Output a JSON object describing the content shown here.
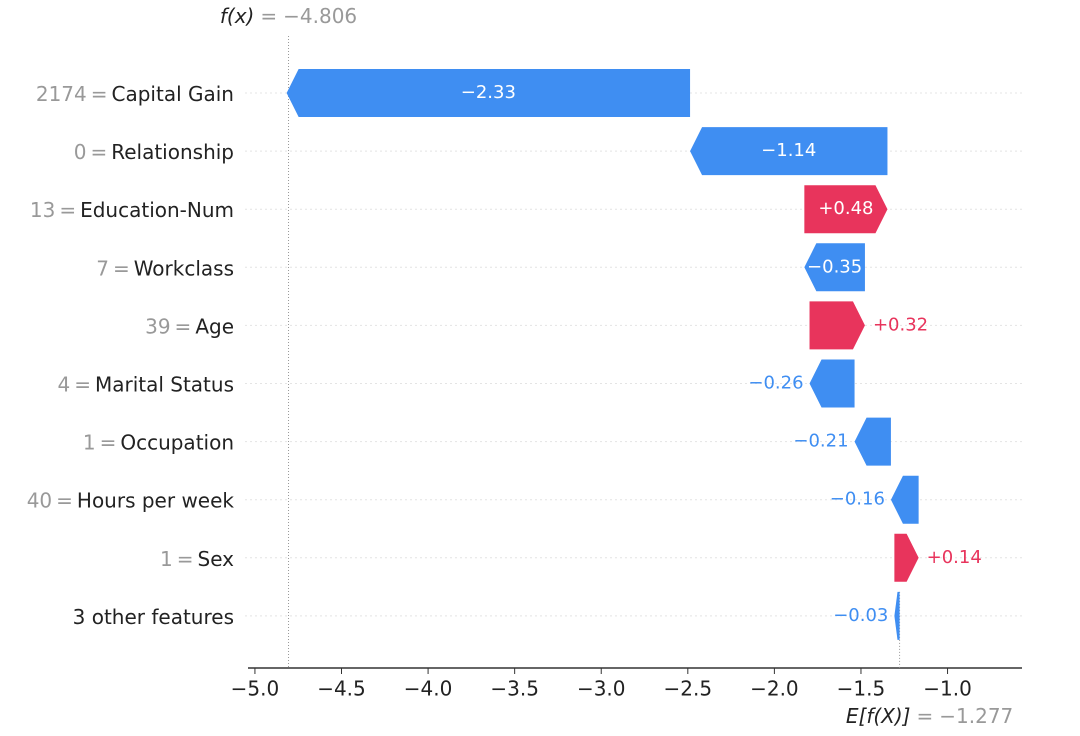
{
  "chart_data": {
    "type": "waterfall",
    "separator": "=",
    "categories": [
      "Capital Gain",
      "Relationship",
      "Education-Num",
      "Workclass",
      "Age",
      "Marital Status",
      "Occupation",
      "Hours per week",
      "Sex",
      "3 other features"
    ],
    "feature_values": [
      "2174",
      "0",
      "13",
      "7",
      "39",
      "4",
      "1",
      "40",
      "1",
      null
    ],
    "values": [
      -2.33,
      -1.14,
      0.48,
      -0.35,
      0.32,
      -0.26,
      -0.21,
      -0.16,
      0.14,
      -0.03
    ],
    "value_labels": [
      "−2.33",
      "−1.14",
      "+0.48",
      "−0.35",
      "+0.32",
      "−0.26",
      "−0.21",
      "−0.16",
      "+0.14",
      "−0.03"
    ],
    "base": {
      "label": "E[f(X)]",
      "value": -1.277,
      "value_label": "−1.277"
    },
    "output": {
      "label": "f(x)",
      "value": -4.806,
      "value_label": "−4.806"
    },
    "positive_color": "#e8345c",
    "negative_color": "#3f8ef2",
    "xlim": [
      -5.04,
      -0.57
    ],
    "xticks": [
      {
        "value": -5.0,
        "label": "−5.0"
      },
      {
        "value": -4.5,
        "label": "−4.5"
      },
      {
        "value": -4.0,
        "label": "−4.0"
      },
      {
        "value": -3.5,
        "label": "−3.5"
      },
      {
        "value": -3.0,
        "label": "−3.0"
      },
      {
        "value": -2.5,
        "label": "−2.5"
      },
      {
        "value": -2.0,
        "label": "−2.0"
      },
      {
        "value": -1.5,
        "label": "−1.5"
      },
      {
        "value": -1.0,
        "label": "−1.0"
      }
    ]
  }
}
